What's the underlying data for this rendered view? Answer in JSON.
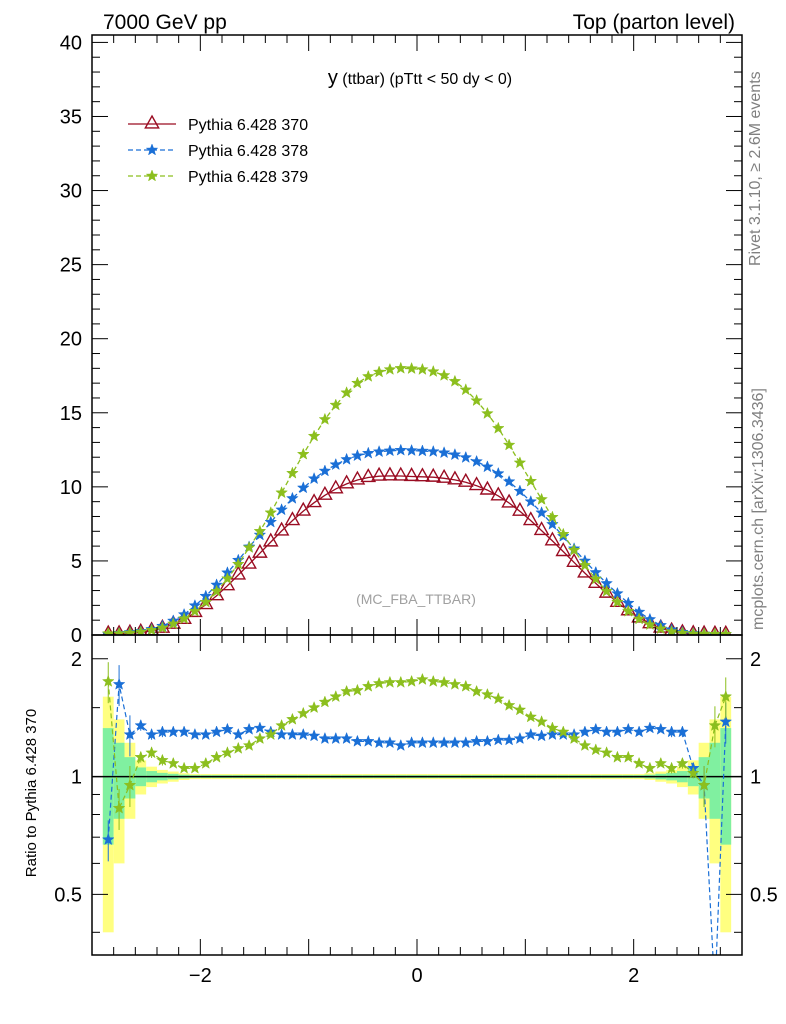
{
  "header": {
    "left": "7000 GeV pp",
    "right": "Top (parton level)"
  },
  "side_labels": {
    "rivet": "Rivet 3.1.10, ≥ 2.6M events",
    "mcplots": "mcplots.cern.ch [arXiv:1306.3436]"
  },
  "plot_title": {
    "main": "y",
    "rest": " (ttbar) (pTtt < 50 dy < 0)"
  },
  "watermark": "(MC_FBA_TTBAR)",
  "ratio_ylabel": "Ratio to Pythia 6.428 370",
  "colors": {
    "s370": "#9a0c22",
    "s378": "#1a6fd6",
    "s379": "#8cbf1e",
    "band_yellow": "#ffff80",
    "band_green": "#80f0a0"
  },
  "chart_data": [
    {
      "type": "line",
      "panel": "main",
      "x": [
        -2.85,
        -2.75,
        -2.65,
        -2.55,
        -2.45,
        -2.35,
        -2.25,
        -2.15,
        -2.05,
        -1.95,
        -1.85,
        -1.75,
        -1.65,
        -1.55,
        -1.45,
        -1.35,
        -1.25,
        -1.15,
        -1.05,
        -0.95,
        -0.85,
        -0.75,
        -0.65,
        -0.55,
        -0.45,
        -0.35,
        -0.25,
        -0.15,
        -0.05,
        0.05,
        0.15,
        0.25,
        0.35,
        0.45,
        0.55,
        0.65,
        0.75,
        0.85,
        0.95,
        1.05,
        1.15,
        1.25,
        1.35,
        1.45,
        1.55,
        1.65,
        1.75,
        1.85,
        1.95,
        2.05,
        2.15,
        2.25,
        2.35,
        2.45,
        2.55,
        2.65,
        2.75,
        2.85
      ],
      "xlim": [
        -3.0,
        3.0
      ],
      "ylim": [
        0,
        40.5
      ],
      "yticks": [
        0,
        5,
        10,
        15,
        20,
        25,
        30,
        35,
        40
      ],
      "series": [
        {
          "name": "Pythia 6.428 370",
          "marker": "triangle",
          "values": [
            0.06,
            0.07,
            0.12,
            0.18,
            0.28,
            0.45,
            0.72,
            1.05,
            1.52,
            2.05,
            2.65,
            3.32,
            4.05,
            4.78,
            5.52,
            6.28,
            7.02,
            7.72,
            8.36,
            8.93,
            9.43,
            9.86,
            10.2,
            10.46,
            10.63,
            10.72,
            10.74,
            10.73,
            10.7,
            10.68,
            10.65,
            10.58,
            10.47,
            10.31,
            10.08,
            9.78,
            9.39,
            8.91,
            8.35,
            7.72,
            7.05,
            6.35,
            5.63,
            4.9,
            4.18,
            3.48,
            2.82,
            2.2,
            1.63,
            1.15,
            0.76,
            0.46,
            0.26,
            0.14,
            0.08,
            0.06,
            0.05,
            0.05
          ]
        },
        {
          "name": "Pythia 6.428 378",
          "marker": "star",
          "dashed": true,
          "values": [
            0.04,
            0.12,
            0.18,
            0.25,
            0.38,
            0.6,
            0.95,
            1.38,
            1.98,
            2.62,
            3.38,
            4.2,
            5.05,
            5.95,
            6.75,
            7.62,
            8.45,
            9.22,
            9.93,
            10.55,
            11.07,
            11.5,
            11.85,
            12.1,
            12.27,
            12.37,
            12.43,
            12.47,
            12.45,
            12.42,
            12.38,
            12.3,
            12.17,
            11.98,
            11.71,
            11.35,
            10.9,
            10.35,
            9.71,
            9.0,
            8.25,
            7.47,
            6.66,
            5.82,
            5.0,
            4.22,
            3.48,
            2.8,
            2.15,
            1.55,
            1.05,
            0.65,
            0.36,
            0.19,
            0.11,
            0.08,
            0.06,
            0.05
          ]
        },
        {
          "name": "Pythia 6.428 379",
          "marker": "star",
          "dashed": true,
          "values": [
            0.1,
            0.1,
            0.14,
            0.21,
            0.32,
            0.48,
            0.75,
            1.1,
            1.6,
            2.22,
            2.95,
            3.8,
            4.78,
            5.9,
            7.0,
            8.25,
            9.6,
            10.92,
            12.2,
            13.42,
            14.55,
            15.52,
            16.35,
            17.0,
            17.45,
            17.75,
            17.92,
            18.0,
            17.98,
            17.92,
            17.78,
            17.52,
            17.12,
            16.55,
            15.82,
            14.95,
            13.95,
            12.82,
            11.62,
            10.38,
            9.15,
            7.95,
            6.8,
            5.72,
            4.7,
            3.78,
            2.95,
            2.22,
            1.6,
            1.08,
            0.7,
            0.42,
            0.23,
            0.13,
            0.08,
            0.07,
            0.06,
            0.06
          ]
        }
      ]
    },
    {
      "type": "line",
      "panel": "ratio",
      "ylabel": "Ratio to Pythia 6.428 370",
      "x": [
        -2.85,
        -2.75,
        -2.65,
        -2.55,
        -2.45,
        -2.35,
        -2.25,
        -2.15,
        -2.05,
        -1.95,
        -1.85,
        -1.75,
        -1.65,
        -1.55,
        -1.45,
        -1.35,
        -1.25,
        -1.15,
        -1.05,
        -0.95,
        -0.85,
        -0.75,
        -0.65,
        -0.55,
        -0.45,
        -0.35,
        -0.25,
        -0.15,
        -0.05,
        0.05,
        0.15,
        0.25,
        0.35,
        0.45,
        0.55,
        0.65,
        0.75,
        0.85,
        0.95,
        1.05,
        1.15,
        1.25,
        1.35,
        1.45,
        1.55,
        1.65,
        1.75,
        1.85,
        1.95,
        2.05,
        2.15,
        2.25,
        2.35,
        2.45,
        2.55,
        2.65,
        2.75,
        2.85
      ],
      "xlim": [
        -3.0,
        3.0
      ],
      "ylim": [
        0.35,
        2.3
      ],
      "log_y": true,
      "yticks": [
        0.5,
        1,
        2
      ],
      "xticks": [
        -2,
        0,
        2
      ],
      "series": [
        {
          "name": "Pythia 6.428 378",
          "dashed": true,
          "values": [
            0.69,
            1.72,
            1.28,
            1.35,
            1.28,
            1.3,
            1.3,
            1.3,
            1.28,
            1.28,
            1.3,
            1.32,
            1.28,
            1.32,
            1.33,
            1.3,
            1.28,
            1.28,
            1.28,
            1.27,
            1.25,
            1.25,
            1.25,
            1.23,
            1.23,
            1.22,
            1.22,
            1.2,
            1.22,
            1.22,
            1.22,
            1.22,
            1.22,
            1.22,
            1.23,
            1.23,
            1.24,
            1.24,
            1.25,
            1.28,
            1.27,
            1.28,
            1.28,
            1.28,
            1.3,
            1.32,
            1.3,
            1.3,
            1.32,
            1.3,
            1.33,
            1.32,
            1.3,
            1.3,
            1.05,
            0.95,
            0.28,
            1.38
          ]
        },
        {
          "name": "Pythia 6.428 379",
          "dashed": true,
          "values": [
            1.75,
            0.83,
            0.95,
            1.12,
            1.15,
            1.1,
            1.08,
            1.05,
            1.05,
            1.08,
            1.12,
            1.15,
            1.18,
            1.2,
            1.25,
            1.28,
            1.35,
            1.4,
            1.45,
            1.5,
            1.55,
            1.6,
            1.65,
            1.66,
            1.7,
            1.73,
            1.74,
            1.74,
            1.75,
            1.77,
            1.75,
            1.74,
            1.72,
            1.7,
            1.65,
            1.62,
            1.58,
            1.52,
            1.48,
            1.42,
            1.38,
            1.33,
            1.3,
            1.25,
            1.2,
            1.17,
            1.15,
            1.12,
            1.12,
            1.08,
            1.05,
            1.08,
            1.05,
            1.08,
            1.02,
            0.95,
            1.35,
            1.6
          ]
        }
      ]
    }
  ]
}
